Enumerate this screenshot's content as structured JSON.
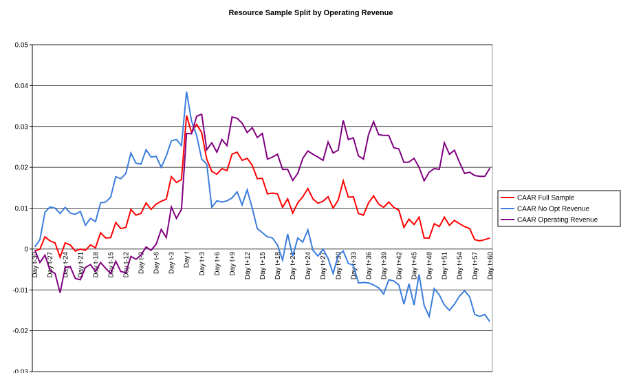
{
  "chart_data": {
    "type": "line",
    "title": "Resource Sample Split by Operating Revenue",
    "categories": [
      "Day t-30",
      null,
      null,
      "Day t-27",
      null,
      null,
      "Day t-24",
      null,
      null,
      "Day t-21",
      null,
      null,
      "Day t-18",
      null,
      null,
      "Day t-15",
      null,
      null,
      "Day t-12",
      null,
      null,
      "Day t-9",
      null,
      null,
      "Day t-6",
      null,
      null,
      "Day t-3",
      null,
      null,
      "Day t",
      null,
      null,
      "Day t+3",
      null,
      null,
      "Day t+6",
      null,
      null,
      "Day t+9",
      null,
      null,
      "Day t+12",
      null,
      null,
      "Day t+15",
      null,
      null,
      "Day t+18",
      null,
      null,
      "Day t+21",
      null,
      null,
      "Day t+24",
      null,
      null,
      "Day t+27",
      null,
      null,
      "Day t+30",
      null,
      null,
      "Day t+33",
      null,
      null,
      "Day t+36",
      null,
      null,
      "Day t+39",
      null,
      null,
      "Day t+42",
      null,
      null,
      "Day t+45",
      null,
      null,
      "Day t+48",
      null,
      null,
      "Day t+51",
      null,
      null,
      "Day t+54",
      null,
      null,
      "Day t+57",
      null,
      null,
      "Day t+60"
    ],
    "series": [
      {
        "name": "CAAR Full Sample",
        "color": "#ff0000",
        "values": [
          -0.0005,
          0,
          0.003,
          0.002,
          0.0015,
          -0.002,
          0.0015,
          0.001,
          -0.0005,
          0,
          -0.0003,
          0.001,
          0.0003,
          0.004,
          0.0027,
          0.0028,
          0.0065,
          0.005,
          0.0053,
          0.0097,
          0.0083,
          0.0087,
          0.0113,
          0.0097,
          0.011,
          0.0117,
          0.0122,
          0.0177,
          0.0163,
          0.017,
          0.0327,
          0.0285,
          0.0305,
          0.0285,
          0.022,
          0.019,
          0.0183,
          0.0197,
          0.0192,
          0.0232,
          0.0237,
          0.0217,
          0.0222,
          0.0205,
          0.0172,
          0.0173,
          0.0135,
          0.0137,
          0.0135,
          0.0102,
          0.0123,
          0.0088,
          0.0113,
          0.0128,
          0.0148,
          0.0123,
          0.0112,
          0.0117,
          0.0128,
          0.01,
          0.012,
          0.0167,
          0.0127,
          0.0128,
          0.0087,
          0.0083,
          0.0113,
          0.013,
          0.011,
          0.0102,
          0.0115,
          0.0102,
          0.0095,
          0.0053,
          0.0073,
          0.006,
          0.0078,
          0.0027,
          0.0027,
          0.0062,
          0.0055,
          0.0078,
          0.0058,
          0.007,
          0.0062,
          0.0055,
          0.005,
          0.0023,
          0.002,
          0.0023,
          0.0027
        ]
      },
      {
        "name": "CAAR No Opt Revenue",
        "color": "#3b7ddd",
        "values": [
          0.0005,
          0.0023,
          0.009,
          0.0103,
          0.01,
          0.0087,
          0.0102,
          0.0088,
          0.0085,
          0.0092,
          0.0058,
          0.0075,
          0.0067,
          0.0113,
          0.0115,
          0.0127,
          0.0177,
          0.0172,
          0.0185,
          0.0235,
          0.021,
          0.0208,
          0.0243,
          0.0225,
          0.0227,
          0.02,
          0.0228,
          0.0265,
          0.0268,
          0.0253,
          0.0385,
          0.0313,
          0.0278,
          0.022,
          0.0208,
          0.0102,
          0.0118,
          0.0115,
          0.0118,
          0.0125,
          0.014,
          0.0108,
          0.0145,
          0.01,
          0.005,
          0.004,
          0.003,
          0.0027,
          0.001,
          -0.0027,
          0.0037,
          -0.0017,
          0.0027,
          0.0017,
          0.0047,
          -0.0003,
          -0.0017,
          0,
          -0.0023,
          -0.006,
          -0.0015,
          -0.0005,
          -0.0035,
          -0.004,
          -0.0083,
          -0.0082,
          -0.0083,
          -0.0088,
          -0.0095,
          -0.011,
          -0.0075,
          -0.0078,
          -0.0088,
          -0.0135,
          -0.0085,
          -0.0137,
          -0.0062,
          -0.0138,
          -0.0165,
          -0.0097,
          -0.0112,
          -0.0137,
          -0.015,
          -0.0135,
          -0.0115,
          -0.0102,
          -0.0117,
          -0.016,
          -0.0165,
          -0.016,
          -0.0178
        ]
      },
      {
        "name": "CAAR Operating Revenue",
        "color": "#800080",
        "values": [
          -0.0003,
          -0.0033,
          -0.0015,
          -0.0052,
          -0.006,
          -0.0107,
          -0.0045,
          -0.0043,
          -0.0072,
          -0.0075,
          -0.0045,
          -0.0038,
          -0.0055,
          -0.0033,
          -0.0047,
          -0.006,
          -0.003,
          -0.0055,
          -0.0058,
          -0.0018,
          -0.0025,
          -0.0015,
          0.0005,
          -0.0003,
          0.0012,
          0.0048,
          0.0028,
          0.0103,
          0.0075,
          0.0097,
          0.0283,
          0.0282,
          0.0325,
          0.033,
          0.0243,
          0.026,
          0.0237,
          0.0268,
          0.0253,
          0.0323,
          0.032,
          0.0308,
          0.0285,
          0.0297,
          0.0273,
          0.0283,
          0.022,
          0.0225,
          0.0232,
          0.0195,
          0.0195,
          0.0168,
          0.0185,
          0.0222,
          0.024,
          0.0232,
          0.0225,
          0.0217,
          0.0262,
          0.0235,
          0.0242,
          0.0315,
          0.0268,
          0.0272,
          0.0228,
          0.022,
          0.028,
          0.0312,
          0.028,
          0.0278,
          0.0278,
          0.0248,
          0.0245,
          0.0212,
          0.0213,
          0.0222,
          0.02,
          0.0167,
          0.0188,
          0.0197,
          0.0195,
          0.026,
          0.0232,
          0.0242,
          0.0212,
          0.0185,
          0.0188,
          0.018,
          0.0178,
          0.0178,
          0.0198
        ]
      }
    ],
    "ylim": [
      -0.03,
      0.05
    ],
    "yticks": [
      -0.03,
      -0.02,
      -0.01,
      0,
      0.01,
      0.02,
      0.03,
      0.04,
      0.05
    ],
    "grid": true,
    "legend": "right"
  }
}
